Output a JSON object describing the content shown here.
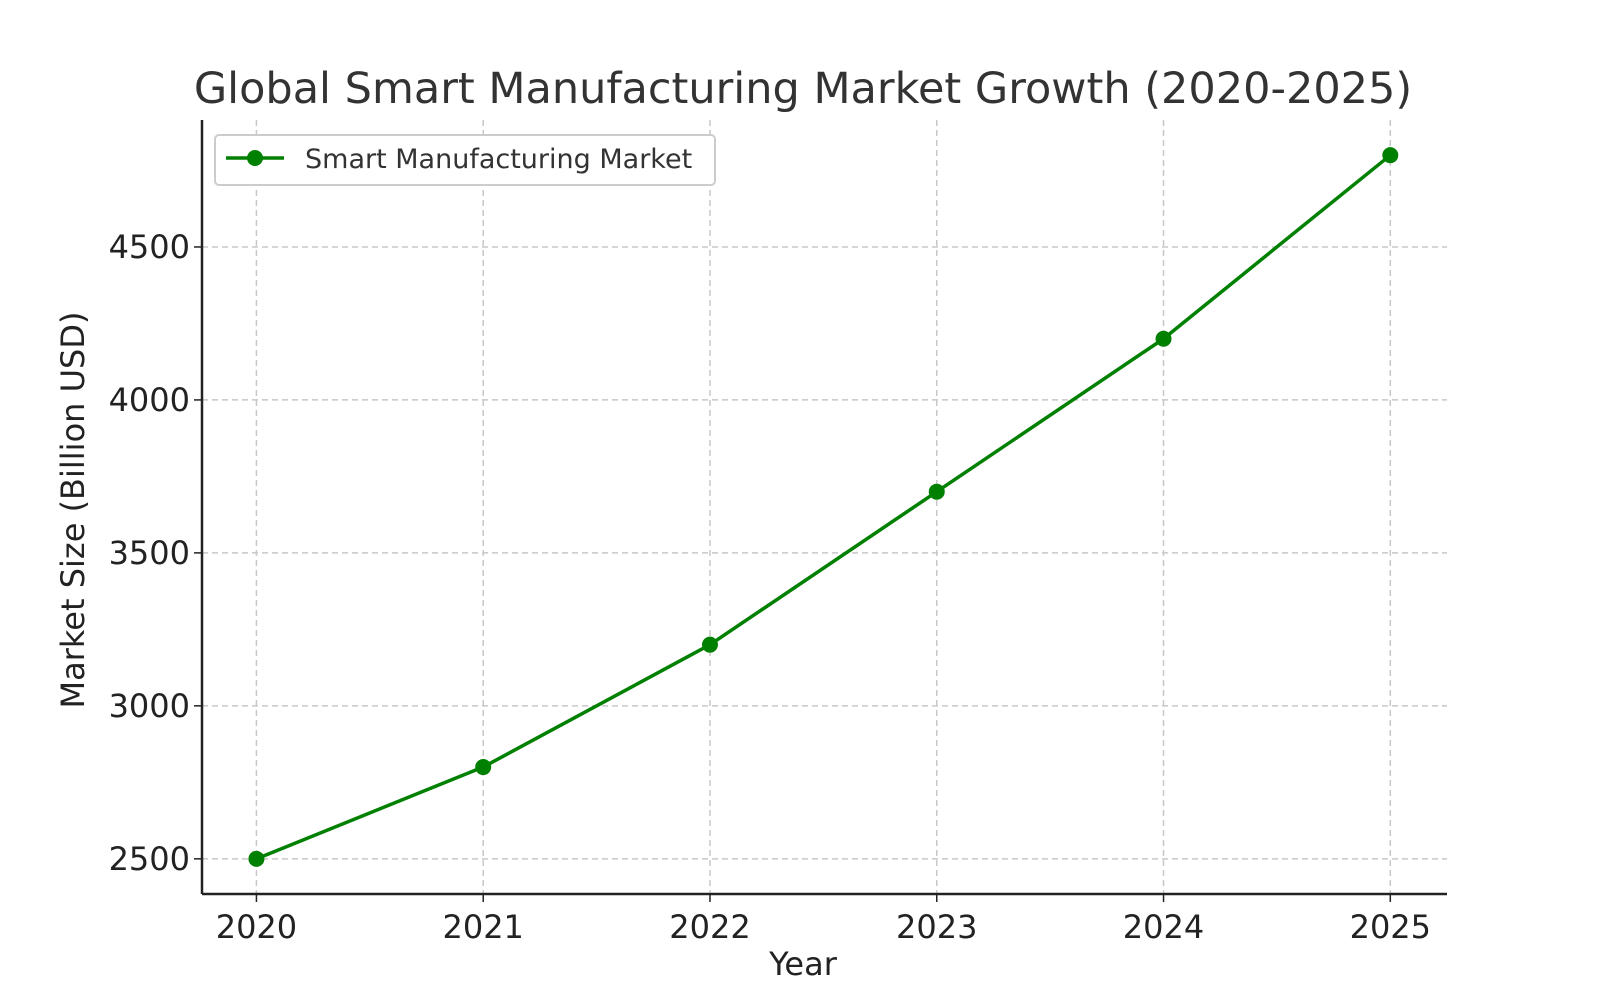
{
  "chart_data": {
    "type": "line",
    "title": "Global Smart Manufacturing Market Growth (2020-2025)",
    "xlabel": "Year",
    "ylabel": "Market Size (Billion USD)",
    "x": [
      2020,
      2021,
      2022,
      2023,
      2024,
      2025
    ],
    "x_tick_labels": [
      "2020",
      "2021",
      "2022",
      "2023",
      "2024",
      "2025"
    ],
    "y_ticks": [
      2500,
      3000,
      3500,
      4000,
      4500
    ],
    "y_tick_labels": [
      "2500",
      "3000",
      "3500",
      "4000",
      "4500"
    ],
    "xlim": [
      2019.76,
      2025.25
    ],
    "ylim": [
      2385,
      4915
    ],
    "grid": true,
    "grid_style": "dashed",
    "legend_position": "top-left",
    "series": [
      {
        "name": "Smart Manufacturing Market",
        "color": "#008000",
        "marker": "circle",
        "values": [
          2500,
          2800,
          3200,
          3700,
          4200,
          4800
        ]
      }
    ]
  }
}
